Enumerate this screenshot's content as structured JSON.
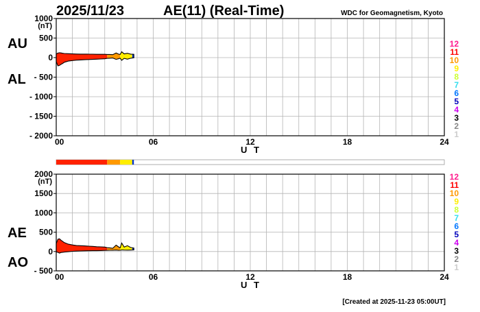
{
  "header": {
    "date": "2025/11/23",
    "title": "AE(11) (Real-Time)",
    "credit": "WDC for Geomagnetism, Kyoto"
  },
  "footer": {
    "created": "[Created at 2025-11-23 05:00UT]"
  },
  "legend": {
    "levels": [
      {
        "label": "12",
        "color": "#ff1a8c"
      },
      {
        "label": "11",
        "color": "#ff0000"
      },
      {
        "label": "10",
        "color": "#ff9900"
      },
      {
        "label": "9",
        "color": "#ffee00"
      },
      {
        "label": "8",
        "color": "#ccff33"
      },
      {
        "label": "7",
        "color": "#33ddee"
      },
      {
        "label": "6",
        "color": "#0077ff"
      },
      {
        "label": "5",
        "color": "#0000bb"
      },
      {
        "label": "4",
        "color": "#cc00ee"
      },
      {
        "label": "3",
        "color": "#000000"
      },
      {
        "label": "2",
        "color": "#888888"
      },
      {
        "label": "1",
        "color": "#cccccc"
      }
    ]
  },
  "station_bar": {
    "segments": [
      {
        "from": 0.0,
        "to": 3.15,
        "color": "#ff2200"
      },
      {
        "from": 3.15,
        "to": 3.95,
        "color": "#ff9900"
      },
      {
        "from": 3.95,
        "to": 4.7,
        "color": "#ffee00"
      },
      {
        "from": 4.7,
        "to": 4.8,
        "color": "#0033cc"
      }
    ]
  },
  "chart_data": [
    {
      "type": "area",
      "series_labels": [
        "AU",
        "AL"
      ],
      "xlabel": "U T",
      "ylabel": "(nT)",
      "xlim": [
        0,
        24
      ],
      "ylim": [
        -2000,
        1000
      ],
      "x_ticks": [
        {
          "v": 0,
          "label": "00"
        },
        {
          "v": 6,
          "label": "06"
        },
        {
          "v": 12,
          "label": "12"
        },
        {
          "v": 18,
          "label": "18"
        },
        {
          "v": 24,
          "label": "24"
        }
      ],
      "y_ticks": [
        {
          "v": 1000,
          "label": "1000"
        },
        {
          "v": 500,
          "label": "500"
        },
        {
          "v": 0,
          "label": "0"
        },
        {
          "v": -500,
          "label": "- 500"
        },
        {
          "v": -1000,
          "label": "- 1000"
        },
        {
          "v": -1500,
          "label": "- 1500"
        },
        {
          "v": -2000,
          "label": "- 2000"
        }
      ],
      "grid": true,
      "time_hours": [
        0.0,
        0.1,
        0.2,
        0.3,
        0.4,
        0.5,
        0.75,
        1.0,
        1.25,
        1.5,
        1.75,
        2.0,
        2.25,
        2.5,
        2.75,
        3.0,
        3.15,
        3.3,
        3.5,
        3.7,
        3.85,
        3.95,
        4.05,
        4.2,
        4.4,
        4.6,
        4.8
      ],
      "upper": [
        90,
        115,
        125,
        120,
        110,
        105,
        100,
        95,
        92,
        90,
        90,
        88,
        88,
        85,
        85,
        85,
        80,
        80,
        75,
        120,
        90,
        80,
        150,
        95,
        110,
        90,
        85
      ],
      "lower": [
        -100,
        -210,
        -200,
        -170,
        -150,
        -120,
        -90,
        -75,
        -65,
        -60,
        -55,
        -50,
        -45,
        -40,
        -35,
        -30,
        -20,
        -15,
        -10,
        -45,
        -30,
        -15,
        -70,
        -20,
        -40,
        -15,
        -5
      ]
    },
    {
      "type": "area",
      "series_labels": [
        "AE",
        "AO"
      ],
      "xlabel": "U T",
      "ylabel": "(nT)",
      "xlim": [
        0,
        24
      ],
      "ylim": [
        -500,
        2000
      ],
      "x_ticks": [
        {
          "v": 0,
          "label": "00"
        },
        {
          "v": 6,
          "label": "06"
        },
        {
          "v": 12,
          "label": "12"
        },
        {
          "v": 18,
          "label": "18"
        },
        {
          "v": 24,
          "label": "24"
        }
      ],
      "y_ticks": [
        {
          "v": 2000,
          "label": "2000"
        },
        {
          "v": 1500,
          "label": "1500"
        },
        {
          "v": 1000,
          "label": "1000"
        },
        {
          "v": 500,
          "label": "500"
        },
        {
          "v": 0,
          "label": "0"
        },
        {
          "v": -500,
          "label": "- 500"
        }
      ],
      "grid": true,
      "time_hours": [
        0.0,
        0.1,
        0.2,
        0.3,
        0.4,
        0.5,
        0.75,
        1.0,
        1.25,
        1.5,
        1.75,
        2.0,
        2.25,
        2.5,
        2.75,
        3.0,
        3.15,
        3.3,
        3.5,
        3.7,
        3.85,
        3.95,
        4.05,
        4.2,
        4.4,
        4.6,
        4.8
      ],
      "upper": [
        200,
        320,
        330,
        290,
        260,
        230,
        190,
        170,
        155,
        150,
        145,
        138,
        133,
        125,
        120,
        115,
        100,
        95,
        85,
        165,
        120,
        95,
        220,
        115,
        150,
        105,
        90
      ],
      "lower": [
        -10,
        -20,
        -40,
        -25,
        -20,
        -15,
        -5,
        5,
        10,
        15,
        18,
        20,
        22,
        22,
        25,
        28,
        30,
        32,
        33,
        38,
        30,
        33,
        40,
        38,
        35,
        38,
        40
      ]
    }
  ]
}
